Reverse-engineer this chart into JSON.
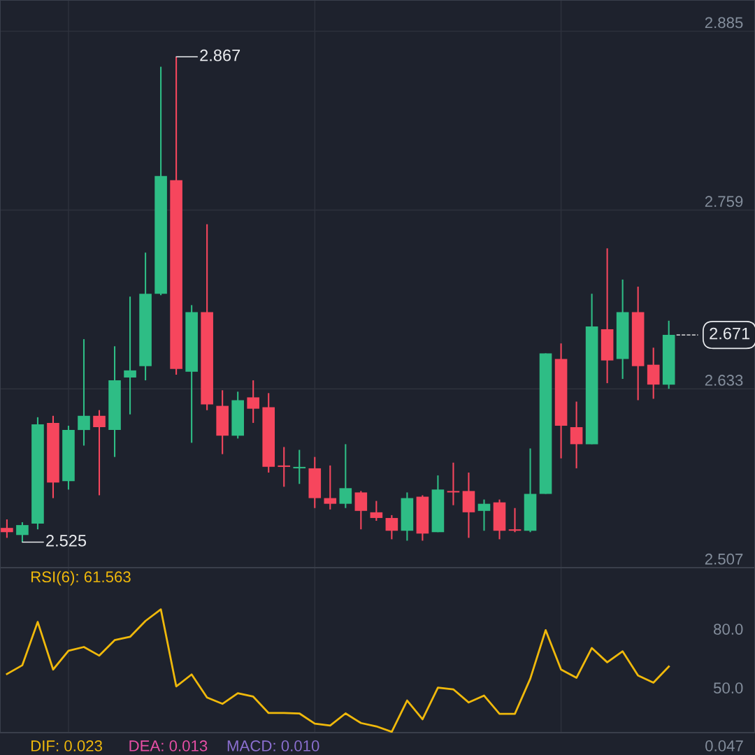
{
  "chart_data": [
    {
      "type": "candlestick",
      "categories": [
        null,
        null,
        null,
        null,
        null,
        null,
        null,
        null,
        null,
        null,
        null,
        null,
        null,
        null,
        null,
        null,
        null,
        null,
        null,
        null,
        null,
        null,
        null,
        null,
        null,
        null,
        null,
        null,
        null,
        null,
        null,
        null,
        null,
        null,
        null,
        null,
        null,
        null,
        null,
        null,
        null,
        null,
        null,
        null
      ],
      "ohlc": [
        [
          2.535,
          2.541,
          2.528,
          2.532
        ],
        [
          2.53,
          2.539,
          2.525,
          2.537
        ],
        [
          2.538,
          2.613,
          2.534,
          2.608
        ],
        [
          2.609,
          2.614,
          2.556,
          2.567
        ],
        [
          2.568,
          2.607,
          2.562,
          2.604
        ],
        [
          2.604,
          2.668,
          2.593,
          2.614
        ],
        [
          2.614,
          2.618,
          2.558,
          2.606
        ],
        [
          2.604,
          2.663,
          2.585,
          2.639
        ],
        [
          2.641,
          2.698,
          2.615,
          2.646
        ],
        [
          2.649,
          2.729,
          2.639,
          2.7
        ],
        [
          2.7,
          2.86,
          2.699,
          2.783
        ],
        [
          2.78,
          2.867,
          2.643,
          2.647
        ],
        [
          2.645,
          2.692,
          2.595,
          2.687
        ],
        [
          2.687,
          2.749,
          2.618,
          2.622
        ],
        [
          2.621,
          2.632,
          2.587,
          2.6
        ],
        [
          2.6,
          2.631,
          2.598,
          2.625
        ],
        [
          2.627,
          2.639,
          2.609,
          2.619
        ],
        [
          2.62,
          2.63,
          2.574,
          2.578
        ],
        [
          2.579,
          2.592,
          2.564,
          2.578
        ],
        [
          2.577,
          2.59,
          2.566,
          2.578
        ],
        [
          2.577,
          2.585,
          2.549,
          2.556
        ],
        [
          2.556,
          2.579,
          2.548,
          2.552
        ],
        [
          2.552,
          2.594,
          2.549,
          2.563
        ],
        [
          2.56,
          2.561,
          2.534,
          2.547
        ],
        [
          2.546,
          2.554,
          2.54,
          2.542
        ],
        [
          2.542,
          2.544,
          2.527,
          2.533
        ],
        [
          2.533,
          2.56,
          2.526,
          2.556
        ],
        [
          2.557,
          2.558,
          2.526,
          2.531
        ],
        [
          2.532,
          2.572,
          2.532,
          2.562
        ],
        [
          2.561,
          2.581,
          2.551,
          2.56
        ],
        [
          2.561,
          2.574,
          2.528,
          2.546
        ],
        [
          2.547,
          2.555,
          2.533,
          2.552
        ],
        [
          2.553,
          2.555,
          2.527,
          2.533
        ],
        [
          2.534,
          2.549,
          2.532,
          2.533
        ],
        [
          2.533,
          2.591,
          2.532,
          2.559
        ],
        [
          2.559,
          2.658,
          2.559,
          2.658
        ],
        [
          2.654,
          2.665,
          2.584,
          2.607
        ],
        [
          2.606,
          2.624,
          2.577,
          2.594
        ],
        [
          2.594,
          2.7,
          2.594,
          2.677
        ],
        [
          2.675,
          2.732,
          2.637,
          2.653
        ],
        [
          2.654,
          2.71,
          2.64,
          2.687
        ],
        [
          2.687,
          2.705,
          2.625,
          2.649
        ],
        [
          2.65,
          2.662,
          2.626,
          2.636
        ],
        [
          2.636,
          2.681,
          2.633,
          2.671
        ]
      ],
      "colors": [
        "#f6465d",
        "#2ebd85",
        "#2ebd85",
        "#f6465d",
        "#2ebd85",
        "#2ebd85",
        "#f6465d",
        "#2ebd85",
        "#2ebd85",
        "#2ebd85",
        "#2ebd85",
        "#f6465d",
        "#2ebd85",
        "#f6465d",
        "#f6465d",
        "#2ebd85",
        "#f6465d",
        "#f6465d",
        "#f6465d",
        "#2ebd85",
        "#f6465d",
        "#f6465d",
        "#2ebd85",
        "#f6465d",
        "#f6465d",
        "#f6465d",
        "#2ebd85",
        "#f6465d",
        "#2ebd85",
        "#f6465d",
        "#f6465d",
        "#2ebd85",
        "#f6465d",
        "#f6465d",
        "#2ebd85",
        "#2ebd85",
        "#f6465d",
        "#f6465d",
        "#2ebd85",
        "#f6465d",
        "#2ebd85",
        "#f6465d",
        "#f6465d",
        "#2ebd85"
      ],
      "ylim": [
        2.507,
        2.907
      ],
      "yticks": [
        2.507,
        2.633,
        2.759,
        2.885
      ],
      "grid": true,
      "annotations": [
        "2.867",
        "2.525"
      ],
      "ref_lines": [
        {
          "axis": "y",
          "value": 2.671,
          "label": "2.671",
          "color": "#ffffff",
          "line_style": "dashed"
        }
      ]
    },
    {
      "type": "line",
      "title": "RSI(6): 61.563",
      "categories": [
        null,
        null,
        null,
        null,
        null,
        null,
        null,
        null,
        null,
        null,
        null,
        null,
        null,
        null,
        null,
        null,
        null,
        null,
        null,
        null,
        null,
        null,
        null,
        null,
        null,
        null,
        null,
        null,
        null,
        null,
        null,
        null,
        null,
        null,
        null,
        null,
        null,
        null,
        null,
        null,
        null,
        null,
        null,
        null
      ],
      "series": [
        {
          "color": "#f0b90b",
          "values": [
            57.8,
            62.3,
            84.4,
            60.1,
            69.7,
            71.6,
            67.2,
            75.1,
            76.8,
            84.9,
            90.8,
            51.5,
            57.6,
            45.8,
            42.6,
            48.0,
            46.3,
            37.9,
            37.9,
            37.7,
            32.5,
            31.5,
            37.7,
            32.8,
            31.1,
            28.3,
            44.3,
            34.7,
            50.9,
            50.0,
            43.3,
            46.8,
            37.5,
            37.5,
            55.4,
            80.2,
            60.1,
            55.9,
            71.1,
            63.8,
            69.4,
            57.1,
            53.4,
            61.6
          ]
        }
      ],
      "ylim": [
        27.9,
        112.1
      ],
      "yticks": [
        {
          "value": 80,
          "label": "80.0"
        },
        {
          "value": 50,
          "label": "50.0"
        }
      ],
      "grid": "x",
      "marker": "none",
      "line_style": "solid"
    },
    {
      "type": "other",
      "annotations": [
        "DIF: 0.023",
        "DEA: 0.013",
        "MACD: 0.010",
        "0.047"
      ],
      "colors": [
        "#f0b90b",
        "#e84fa6",
        "#8b6fd0",
        "#848e9c"
      ]
    }
  ]
}
